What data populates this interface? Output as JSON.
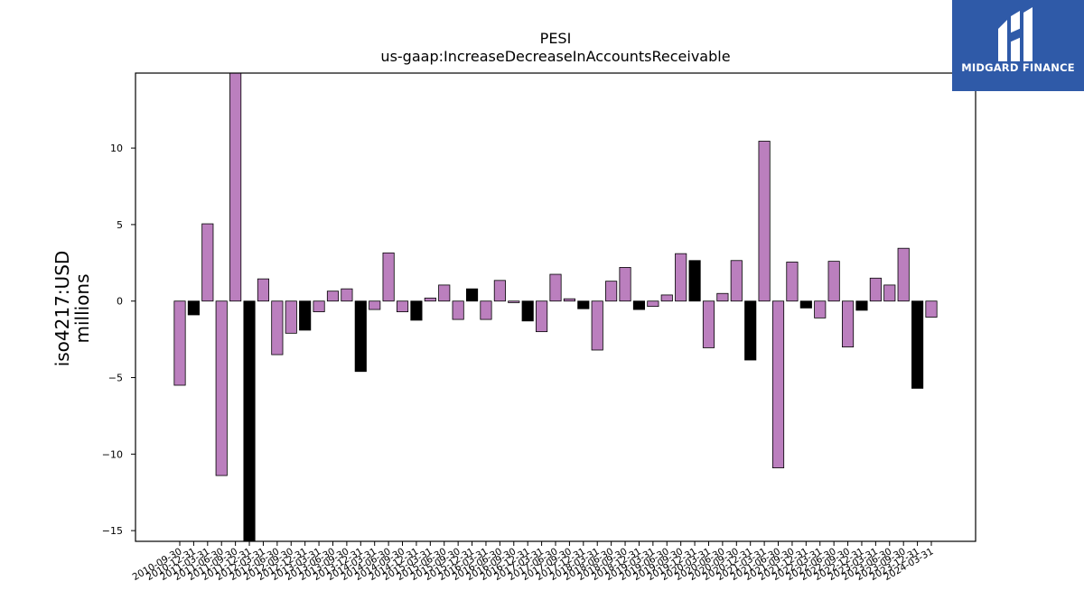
{
  "chart_data": {
    "type": "bar",
    "title": "PESI",
    "subtitle": "us-gaap:IncreaseDecreaseInAccountsReceivable",
    "ylabel_line1": "iso4217:USD",
    "ylabel_line2": "millions",
    "xlabel": "",
    "ylim": [
      -15.7,
      14.9
    ],
    "yticks": [
      -15,
      -10,
      -5,
      0,
      5,
      10
    ],
    "ytick_labels": [
      "−15",
      "−10",
      "−5",
      "0",
      "5",
      "10"
    ],
    "grid": false,
    "legend": "none",
    "colors": {
      "default": "#bb7fbe",
      "highlight": "#000000",
      "edge": "#000000"
    },
    "categories": [
      "2010-09-30",
      "2010-12-31",
      "2011-03-31",
      "2011-06-30",
      "2011-09-30",
      "2011-12-31",
      "2012-03-31",
      "2012-06-30",
      "2012-09-30",
      "2012-12-31",
      "2013-03-31",
      "2013-06-30",
      "2013-09-30",
      "2013-12-31",
      "2014-03-31",
      "2014-06-30",
      "2014-09-30",
      "2014-12-31",
      "2015-03-31",
      "2015-06-30",
      "2015-09-30",
      "2015-12-31",
      "2016-03-31",
      "2016-06-30",
      "2016-09-30",
      "2016-12-31",
      "2017-03-31",
      "2017-06-30",
      "2017-09-30",
      "2017-12-31",
      "2018-03-31",
      "2018-06-30",
      "2018-09-30",
      "2018-12-31",
      "2019-03-31",
      "2019-06-30",
      "2019-09-30",
      "2019-12-31",
      "2020-03-31",
      "2020-06-30",
      "2020-09-30",
      "2020-12-31",
      "2021-03-31",
      "2021-06-30",
      "2021-09-30",
      "2021-12-31",
      "2022-03-31",
      "2022-06-30",
      "2022-09-30",
      "2022-12-31",
      "2023-03-31",
      "2023-06-30",
      "2023-09-30",
      "2023-12-31",
      "2024-03-31"
    ],
    "values": [
      -5.5,
      -0.9,
      5.05,
      -11.4,
      15.0,
      -16.0,
      1.45,
      -3.5,
      -2.1,
      -1.9,
      -0.7,
      0.65,
      0.8,
      -4.6,
      -0.55,
      3.15,
      -0.7,
      -1.25,
      0.2,
      1.05,
      -1.2,
      0.8,
      -1.2,
      1.35,
      -0.1,
      -1.3,
      -2.0,
      1.75,
      0.15,
      -0.5,
      -3.2,
      1.3,
      2.2,
      -0.55,
      -0.35,
      0.4,
      3.1,
      2.65,
      -3.05,
      0.5,
      2.65,
      -3.85,
      10.45,
      -10.9,
      2.55,
      -0.45,
      -1.1,
      2.6,
      -3.0,
      -0.6,
      1.5,
      1.05,
      3.45,
      -5.7,
      -1.05
    ],
    "highlight": [
      false,
      true,
      false,
      false,
      false,
      true,
      false,
      false,
      false,
      true,
      false,
      false,
      false,
      true,
      false,
      false,
      false,
      true,
      false,
      false,
      false,
      true,
      false,
      false,
      false,
      true,
      false,
      false,
      false,
      true,
      false,
      false,
      false,
      true,
      false,
      false,
      false,
      true,
      false,
      false,
      false,
      true,
      false,
      false,
      false,
      true,
      false,
      false,
      false,
      true,
      false,
      false,
      false,
      true,
      false
    ]
  },
  "logo": {
    "text": "MIDGARD FINANCE",
    "color": "#2f5aa8"
  }
}
